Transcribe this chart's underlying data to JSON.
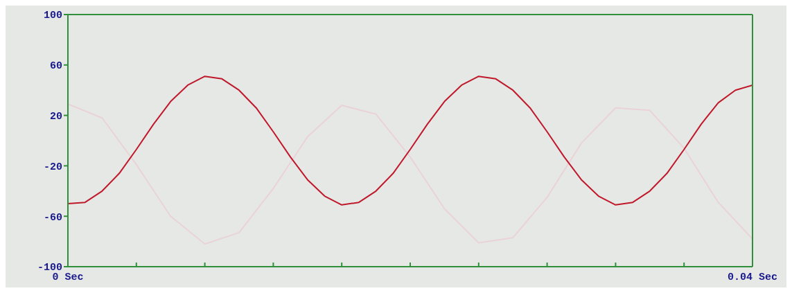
{
  "chart_data": {
    "type": "line",
    "xlim": [
      0,
      0.04
    ],
    "xticks": [
      {
        "value": 0,
        "label": "0 Sec"
      },
      {
        "value": 0.004,
        "label": null
      },
      {
        "value": 0.008,
        "label": null
      },
      {
        "value": 0.012,
        "label": null
      },
      {
        "value": 0.016,
        "label": null
      },
      {
        "value": 0.02,
        "label": null
      },
      {
        "value": 0.024,
        "label": null
      },
      {
        "value": 0.028,
        "label": null
      },
      {
        "value": 0.032,
        "label": null
      },
      {
        "value": 0.036,
        "label": null
      },
      {
        "value": 0.04,
        "label": "0.04 Sec"
      }
    ],
    "ylim": [
      -100,
      100
    ],
    "yticks": [
      -100,
      -60,
      -20,
      20,
      60,
      100
    ],
    "marker": "none",
    "line_style": "solid",
    "series": [
      {
        "color": "#ead3d6",
        "x": [
          0,
          0.002,
          0.004,
          0.006,
          0.008,
          0.01,
          0.012,
          0.014,
          0.016,
          0.018,
          0.02,
          0.022,
          0.024,
          0.026,
          0.028,
          0.03,
          0.032,
          0.034,
          0.036,
          0.038,
          0.04
        ],
        "values": [
          29,
          18,
          -19,
          -60,
          -82,
          -73,
          -38,
          3,
          28,
          21,
          -13,
          -54,
          -81,
          -77,
          -45,
          -2,
          26,
          24,
          -6,
          -49,
          -78
        ]
      },
      {
        "color": "#c0182a",
        "x": [
          0,
          0.001,
          0.002,
          0.003,
          0.004,
          0.005,
          0.006,
          0.007,
          0.008,
          0.009,
          0.01,
          0.011,
          0.012,
          0.013,
          0.014,
          0.015,
          0.016,
          0.017,
          0.018,
          0.019,
          0.02,
          0.021,
          0.022,
          0.023,
          0.024,
          0.025,
          0.026,
          0.027,
          0.028,
          0.029,
          0.03,
          0.031,
          0.032,
          0.033,
          0.034,
          0.035,
          0.036,
          0.037,
          0.038,
          0.039,
          0.04
        ],
        "values": [
          -50,
          -49,
          -40,
          -26,
          -7,
          13,
          31,
          44,
          51,
          49,
          40,
          26,
          7,
          -13,
          -31,
          -44,
          -51,
          -49,
          -40,
          -26,
          -7,
          13,
          31,
          44,
          51,
          49,
          40,
          26,
          7,
          -13,
          -31,
          -44,
          -51,
          -49,
          -40,
          -26,
          -7,
          13,
          30,
          40,
          44
        ]
      }
    ]
  }
}
